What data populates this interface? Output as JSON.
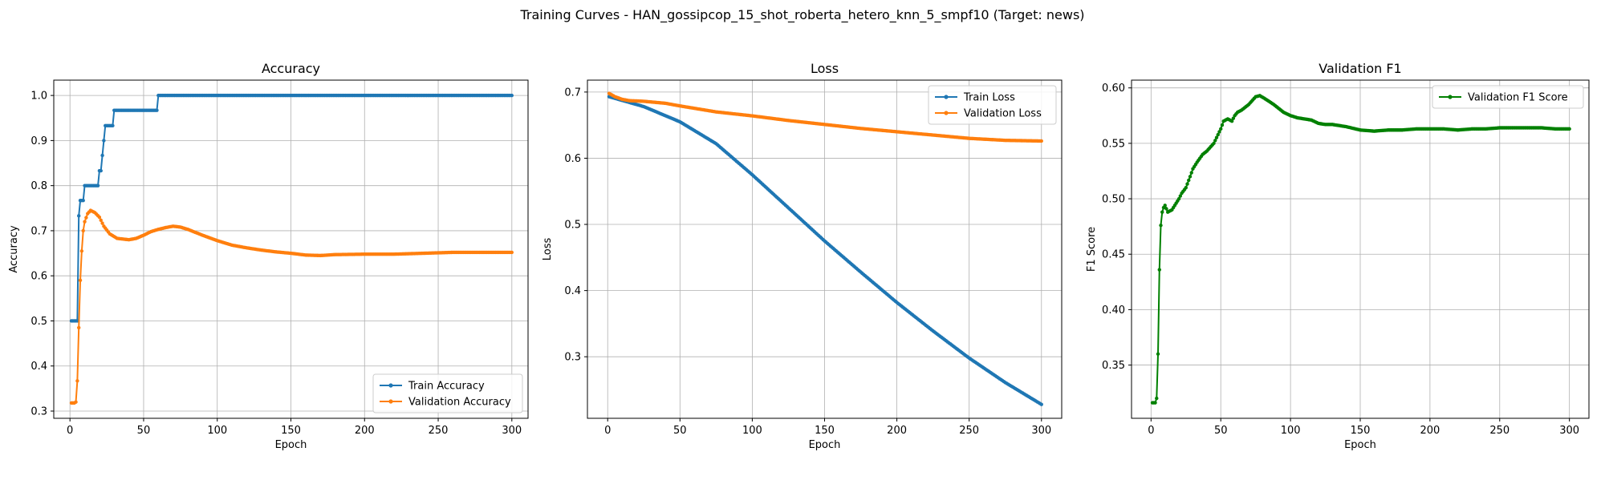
{
  "suptitle": "Training Curves - HAN_gossipcop_15_shot_roberta_hetero_knn_5_smpf10 (Target: news)",
  "chart_data": [
    {
      "type": "line",
      "title": "Accuracy",
      "xlabel": "Epoch",
      "ylabel": "Accuracy",
      "xlim": [
        -11,
        311
      ],
      "ylim": [
        0.284,
        1.034
      ],
      "xticks": [
        0,
        50,
        100,
        150,
        200,
        250,
        300
      ],
      "yticks": [
        0.3,
        0.4,
        0.5,
        0.6,
        0.7,
        0.8,
        0.9,
        1.0
      ],
      "ytick_labels": [
        "0.3",
        "0.4",
        "0.5",
        "0.6",
        "0.7",
        "0.8",
        "0.9",
        "1.0"
      ],
      "grid": true,
      "legend_loc": "lower right",
      "series": [
        {
          "name": "Train Accuracy",
          "color": "#1f77b4",
          "points": [
            [
              1,
              0.5
            ],
            [
              5,
              0.5
            ],
            [
              6,
              0.733
            ],
            [
              7,
              0.767
            ],
            [
              9,
              0.767
            ],
            [
              10,
              0.8
            ],
            [
              19,
              0.8
            ],
            [
              20,
              0.833
            ],
            [
              21,
              0.833
            ],
            [
              22,
              0.867
            ],
            [
              23,
              0.9
            ],
            [
              24,
              0.933
            ],
            [
              29,
              0.933
            ],
            [
              30,
              0.967
            ],
            [
              59,
              0.967
            ],
            [
              60,
              1.0
            ],
            [
              300,
              1.0
            ]
          ]
        },
        {
          "name": "Validation Accuracy",
          "color": "#ff7f0e",
          "points": [
            [
              1,
              0.318
            ],
            [
              3,
              0.318
            ],
            [
              4,
              0.32
            ],
            [
              5,
              0.367
            ],
            [
              6,
              0.485
            ],
            [
              7,
              0.59
            ],
            [
              8,
              0.655
            ],
            [
              9,
              0.7
            ],
            [
              10,
              0.72
            ],
            [
              12,
              0.738
            ],
            [
              14,
              0.745
            ],
            [
              17,
              0.74
            ],
            [
              20,
              0.73
            ],
            [
              23,
              0.71
            ],
            [
              27,
              0.693
            ],
            [
              32,
              0.683
            ],
            [
              40,
              0.68
            ],
            [
              45,
              0.683
            ],
            [
              50,
              0.69
            ],
            [
              55,
              0.698
            ],
            [
              60,
              0.703
            ],
            [
              65,
              0.707
            ],
            [
              70,
              0.71
            ],
            [
              75,
              0.708
            ],
            [
              80,
              0.703
            ],
            [
              90,
              0.69
            ],
            [
              100,
              0.678
            ],
            [
              110,
              0.668
            ],
            [
              120,
              0.662
            ],
            [
              130,
              0.657
            ],
            [
              140,
              0.653
            ],
            [
              150,
              0.65
            ],
            [
              160,
              0.646
            ],
            [
              170,
              0.645
            ],
            [
              180,
              0.647
            ],
            [
              200,
              0.648
            ],
            [
              220,
              0.648
            ],
            [
              240,
              0.65
            ],
            [
              260,
              0.652
            ],
            [
              300,
              0.652
            ]
          ]
        }
      ]
    },
    {
      "type": "line",
      "title": "Loss",
      "xlabel": "Epoch",
      "ylabel": "Loss",
      "xlim": [
        -14,
        314
      ],
      "ylim": [
        0.207,
        0.718
      ],
      "xticks": [
        0,
        50,
        100,
        150,
        200,
        250,
        300
      ],
      "yticks": [
        0.3,
        0.4,
        0.5,
        0.6,
        0.7
      ],
      "ytick_labels": [
        "0.3",
        "0.4",
        "0.5",
        "0.6",
        "0.7"
      ],
      "grid": true,
      "legend_loc": "upper right",
      "series": [
        {
          "name": "Train Loss",
          "color": "#1f77b4",
          "points": [
            [
              1,
              0.693
            ],
            [
              25,
              0.678
            ],
            [
              50,
              0.655
            ],
            [
              75,
              0.622
            ],
            [
              100,
              0.575
            ],
            [
              125,
              0.525
            ],
            [
              150,
              0.475
            ],
            [
              175,
              0.428
            ],
            [
              200,
              0.382
            ],
            [
              225,
              0.339
            ],
            [
              250,
              0.298
            ],
            [
              275,
              0.261
            ],
            [
              300,
              0.228
            ]
          ]
        },
        {
          "name": "Validation Loss",
          "color": "#ff7f0e",
          "points": [
            [
              1,
              0.698
            ],
            [
              5,
              0.693
            ],
            [
              10,
              0.689
            ],
            [
              15,
              0.687
            ],
            [
              25,
              0.686
            ],
            [
              40,
              0.683
            ],
            [
              50,
              0.679
            ],
            [
              75,
              0.67
            ],
            [
              100,
              0.664
            ],
            [
              125,
              0.657
            ],
            [
              150,
              0.651
            ],
            [
              175,
              0.645
            ],
            [
              200,
              0.64
            ],
            [
              225,
              0.635
            ],
            [
              250,
              0.63
            ],
            [
              275,
              0.627
            ],
            [
              300,
              0.626
            ]
          ]
        }
      ]
    },
    {
      "type": "line",
      "title": "Validation F1",
      "xlabel": "Epoch",
      "ylabel": "F1 Score",
      "xlim": [
        -14,
        314
      ],
      "ylim": [
        0.302,
        0.607
      ],
      "xticks": [
        0,
        50,
        100,
        150,
        200,
        250,
        300
      ],
      "yticks": [
        0.35,
        0.4,
        0.45,
        0.5,
        0.55,
        0.6
      ],
      "ytick_labels": [
        "0.35",
        "0.40",
        "0.45",
        "0.50",
        "0.55",
        "0.60"
      ],
      "grid": true,
      "legend_loc": "upper right",
      "series": [
        {
          "name": "Validation F1 Score",
          "color": "#008000",
          "points": [
            [
              1,
              0.316
            ],
            [
              3,
              0.316
            ],
            [
              4,
              0.32
            ],
            [
              5,
              0.36
            ],
            [
              6,
              0.436
            ],
            [
              7,
              0.476
            ],
            [
              8,
              0.488
            ],
            [
              9,
              0.492
            ],
            [
              10,
              0.494
            ],
            [
              12,
              0.488
            ],
            [
              15,
              0.49
            ],
            [
              18,
              0.496
            ],
            [
              20,
              0.5
            ],
            [
              22,
              0.505
            ],
            [
              25,
              0.51
            ],
            [
              28,
              0.52
            ],
            [
              30,
              0.527
            ],
            [
              33,
              0.533
            ],
            [
              37,
              0.54
            ],
            [
              40,
              0.543
            ],
            [
              45,
              0.55
            ],
            [
              50,
              0.563
            ],
            [
              52,
              0.57
            ],
            [
              55,
              0.572
            ],
            [
              58,
              0.57
            ],
            [
              60,
              0.575
            ],
            [
              62,
              0.578
            ],
            [
              65,
              0.58
            ],
            [
              70,
              0.585
            ],
            [
              75,
              0.592
            ],
            [
              78,
              0.593
            ],
            [
              82,
              0.59
            ],
            [
              88,
              0.585
            ],
            [
              95,
              0.578
            ],
            [
              100,
              0.575
            ],
            [
              105,
              0.573
            ],
            [
              110,
              0.572
            ],
            [
              115,
              0.571
            ],
            [
              120,
              0.568
            ],
            [
              125,
              0.567
            ],
            [
              130,
              0.567
            ],
            [
              140,
              0.565
            ],
            [
              150,
              0.562
            ],
            [
              160,
              0.561
            ],
            [
              170,
              0.562
            ],
            [
              180,
              0.562
            ],
            [
              190,
              0.563
            ],
            [
              200,
              0.563
            ],
            [
              210,
              0.563
            ],
            [
              220,
              0.562
            ],
            [
              230,
              0.563
            ],
            [
              240,
              0.563
            ],
            [
              250,
              0.564
            ],
            [
              260,
              0.564
            ],
            [
              270,
              0.564
            ],
            [
              280,
              0.564
            ],
            [
              290,
              0.563
            ],
            [
              300,
              0.563
            ]
          ]
        }
      ]
    }
  ]
}
